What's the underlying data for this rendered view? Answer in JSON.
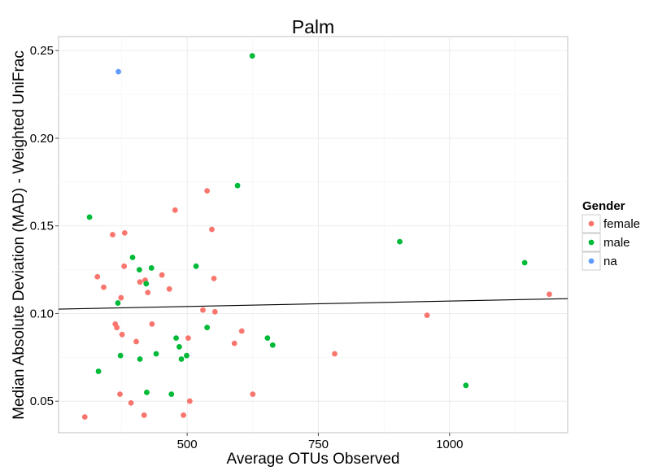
{
  "chart_data": {
    "type": "scatter",
    "title": "Palm",
    "xlabel": "Average OTUs Observed",
    "ylabel": "Median Absolute Deviation (MAD) - Weighted UniFrac",
    "xlim": [
      255,
      1225
    ],
    "ylim": [
      0.032,
      0.258
    ],
    "x_ticks": [
      500,
      750,
      1000
    ],
    "x_tick_labels": [
      "500",
      "750",
      "1000"
    ],
    "y_ticks": [
      0.05,
      0.1,
      0.15,
      0.2,
      0.25
    ],
    "y_tick_labels": [
      "0.05",
      "0.10",
      "0.15",
      "0.20",
      "0.25"
    ],
    "grid": true,
    "legend": {
      "title": "Gender",
      "placement": "right"
    },
    "series": [
      {
        "name": "female",
        "color": "#f8766d",
        "points": [
          [
            305,
            0.041
          ],
          [
            329,
            0.121
          ],
          [
            341,
            0.115
          ],
          [
            358,
            0.145
          ],
          [
            363,
            0.094
          ],
          [
            366,
            0.092
          ],
          [
            372,
            0.054
          ],
          [
            374,
            0.109
          ],
          [
            376,
            0.088
          ],
          [
            380,
            0.127
          ],
          [
            381,
            0.146
          ],
          [
            393,
            0.049
          ],
          [
            403,
            0.084
          ],
          [
            410,
            0.118
          ],
          [
            418,
            0.042
          ],
          [
            420,
            0.119
          ],
          [
            425,
            0.112
          ],
          [
            433,
            0.094
          ],
          [
            452,
            0.122
          ],
          [
            466,
            0.114
          ],
          [
            477,
            0.159
          ],
          [
            493,
            0.042
          ],
          [
            502,
            0.086
          ],
          [
            505,
            0.05
          ],
          [
            530,
            0.102
          ],
          [
            538,
            0.17
          ],
          [
            547,
            0.148
          ],
          [
            551,
            0.12
          ],
          [
            553,
            0.101
          ],
          [
            590,
            0.083
          ],
          [
            604,
            0.09
          ],
          [
            625,
            0.054
          ],
          [
            781,
            0.077
          ],
          [
            957,
            0.099
          ],
          [
            1190,
            0.111
          ]
        ]
      },
      {
        "name": "male",
        "color": "#00ba38",
        "points": [
          [
            314,
            0.155
          ],
          [
            331,
            0.067
          ],
          [
            368,
            0.106
          ],
          [
            373,
            0.076
          ],
          [
            396,
            0.132
          ],
          [
            409,
            0.125
          ],
          [
            410,
            0.074
          ],
          [
            422,
            0.117
          ],
          [
            423,
            0.055
          ],
          [
            432,
            0.126
          ],
          [
            441,
            0.077
          ],
          [
            470,
            0.054
          ],
          [
            479,
            0.086
          ],
          [
            485,
            0.081
          ],
          [
            489,
            0.074
          ],
          [
            499,
            0.076
          ],
          [
            517,
            0.127
          ],
          [
            538,
            0.092
          ],
          [
            596,
            0.173
          ],
          [
            624,
            0.247
          ],
          [
            653,
            0.086
          ],
          [
            663,
            0.082
          ],
          [
            905,
            0.141
          ],
          [
            1031,
            0.059
          ],
          [
            1143,
            0.129
          ]
        ]
      },
      {
        "name": "na",
        "color": "#619cff",
        "points": [
          [
            369,
            0.238
          ]
        ]
      }
    ],
    "trendline": {
      "type": "linear",
      "x": [
        255,
        1225
      ],
      "y": [
        0.1025,
        0.1085
      ],
      "color": "#000000"
    }
  }
}
